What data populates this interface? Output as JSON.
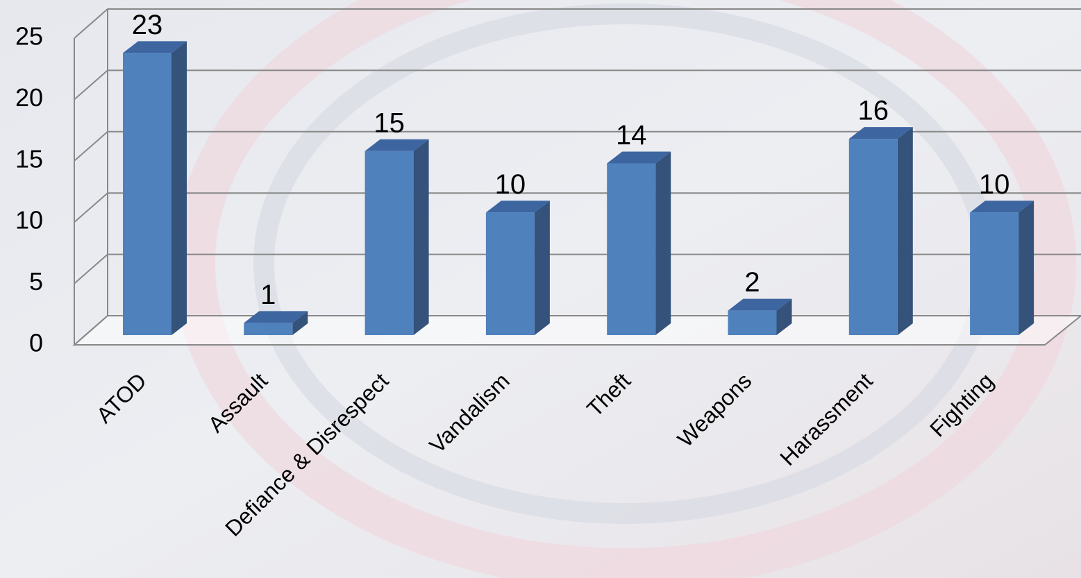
{
  "chart_data": {
    "type": "bar",
    "categories": [
      "ATOD",
      "Assault",
      "Defiance & Disrespect",
      "Vandalism",
      "Theft",
      "Weapons",
      "Harassment",
      "Fighting"
    ],
    "values": [
      23,
      1,
      15,
      10,
      14,
      2,
      16,
      10
    ],
    "color": "#4f81bd",
    "ylim": [
      0,
      25
    ],
    "yticks": [
      0,
      5,
      10,
      15,
      20,
      25
    ],
    "grid": true
  }
}
